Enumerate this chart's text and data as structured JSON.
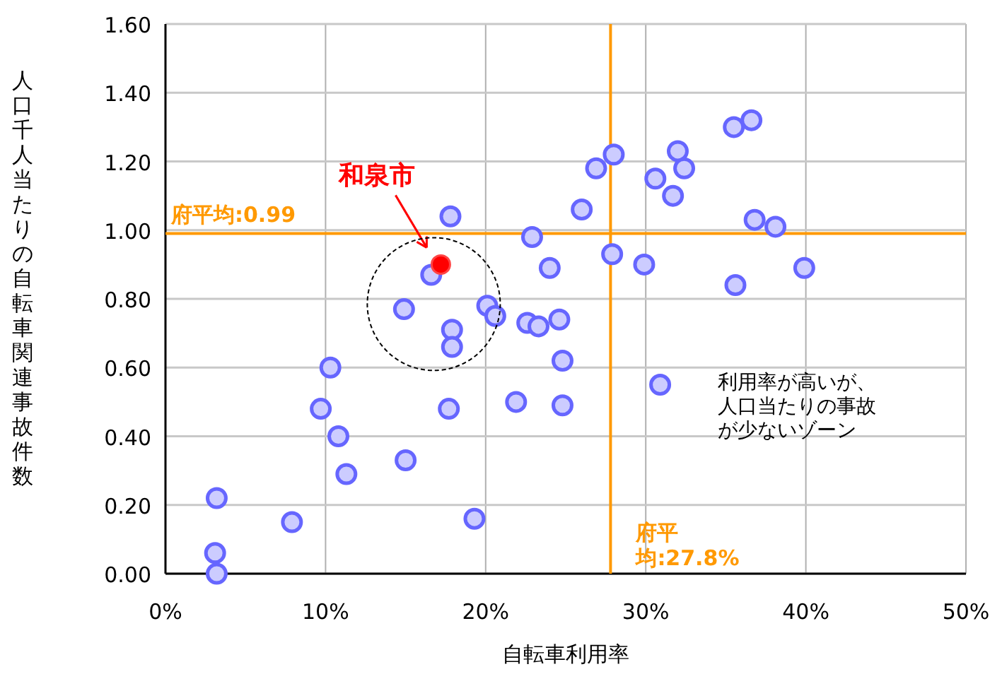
{
  "chart_data": {
    "type": "scatter",
    "xlabel": "自転車利用率",
    "ylabel": "人口千人当たりの自転車関連事故件数",
    "xlim": [
      0,
      50
    ],
    "xticks": [
      {
        "value": 0,
        "label": "0%"
      },
      {
        "value": 10,
        "label": "10%"
      },
      {
        "value": 20,
        "label": "20%"
      },
      {
        "value": 30,
        "label": "30%"
      },
      {
        "value": 40,
        "label": "40%"
      },
      {
        "value": 50,
        "label": "50%"
      }
    ],
    "ylim": [
      0,
      1.6
    ],
    "yticks": [
      {
        "value": 0,
        "label": "0.00"
      },
      {
        "value": 0.2,
        "label": "0.20"
      },
      {
        "value": 0.4,
        "label": "0.40"
      },
      {
        "value": 0.6,
        "label": "0.60"
      },
      {
        "value": 0.8,
        "label": "0.80"
      },
      {
        "value": 1.0,
        "label": "1.00"
      },
      {
        "value": 1.2,
        "label": "1.20"
      },
      {
        "value": 1.4,
        "label": "1.40"
      },
      {
        "value": 1.6,
        "label": "1.60"
      }
    ],
    "grid": true,
    "legend": false,
    "marker": "circle",
    "series": [
      {
        "color": "#6666ff",
        "x": [
          17.8,
          22.9,
          24.0,
          26.0,
          16.6,
          14.9,
          20.1,
          20.6,
          17.9,
          17.9,
          22.6,
          23.3,
          24.6,
          24.8,
          10.3,
          26.9,
          28.0,
          30.6,
          32.0,
          32.4,
          31.7,
          35.5,
          36.6,
          36.8,
          38.1,
          27.9,
          29.9,
          39.9,
          35.6,
          9.7,
          10.8,
          11.3,
          3.2,
          7.9,
          3.1,
          3.2,
          15.0,
          17.7,
          19.3,
          21.9,
          24.8,
          30.9
        ],
        "values": [
          1.04,
          0.98,
          0.89,
          1.06,
          0.87,
          0.77,
          0.78,
          0.75,
          0.71,
          0.66,
          0.73,
          0.72,
          0.74,
          0.62,
          0.6,
          1.18,
          1.22,
          1.15,
          1.23,
          1.18,
          1.1,
          1.3,
          1.32,
          1.03,
          1.01,
          0.93,
          0.9,
          0.89,
          0.84,
          0.48,
          0.4,
          0.29,
          0.22,
          0.15,
          0.06,
          0.0,
          0.33,
          0.48,
          0.16,
          0.5,
          0.49,
          0.55
        ]
      },
      {
        "name": "和泉市",
        "color": "#ff0000",
        "x": [
          17.2
        ],
        "values": [
          0.9
        ]
      }
    ],
    "ref_lines": [
      {
        "axis": "y",
        "value": 0.99,
        "label": "府平均:0.99",
        "color": "#ff9900"
      },
      {
        "axis": "x",
        "value": 27.8,
        "label": "府平均:27.8%",
        "color": "#ff9900"
      }
    ],
    "annotations": [
      "利用率が高いが、人口当たりの事故が少ないゾーン"
    ]
  }
}
